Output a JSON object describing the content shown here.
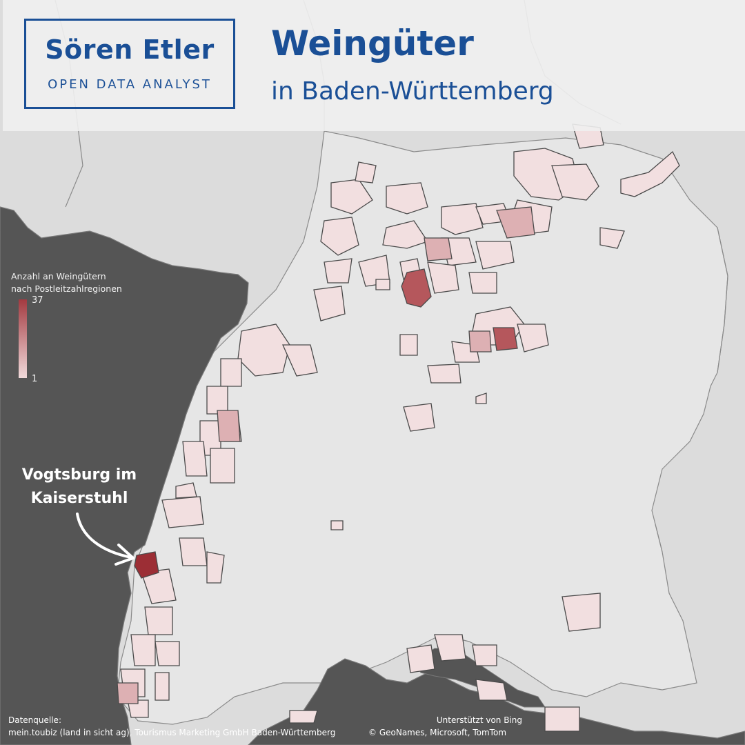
{
  "brand": {
    "name": "Sören Etler",
    "tagline": "OPEN DATA ANALYST"
  },
  "header": {
    "title": "Weingüter",
    "subtitle": "in Baden-Württemberg"
  },
  "legend": {
    "title_line1": "Anzahl an Weingütern",
    "title_line2": "nach Postleitzahlregionen",
    "max": "37",
    "min": "1"
  },
  "annotation": {
    "line1": "Vogtsburg im",
    "line2": "Kaiserstuhl"
  },
  "footer": {
    "source_label": "Datenquelle:",
    "source_text": "mein.toubiz (land in sicht ag), Tourismus Marketing GmbH Baden-Württemberg",
    "attribution_line1": "Unterstützt von Bing",
    "attribution_line2": "© GeoNames, Microsoft, TomTom"
  },
  "colors": {
    "brand_blue": "#1a4f96",
    "scale_low": "#f1dadb",
    "scale_high": "#a33a40",
    "land": "#dcdcdc",
    "neighbor_dark": "#555555"
  }
}
